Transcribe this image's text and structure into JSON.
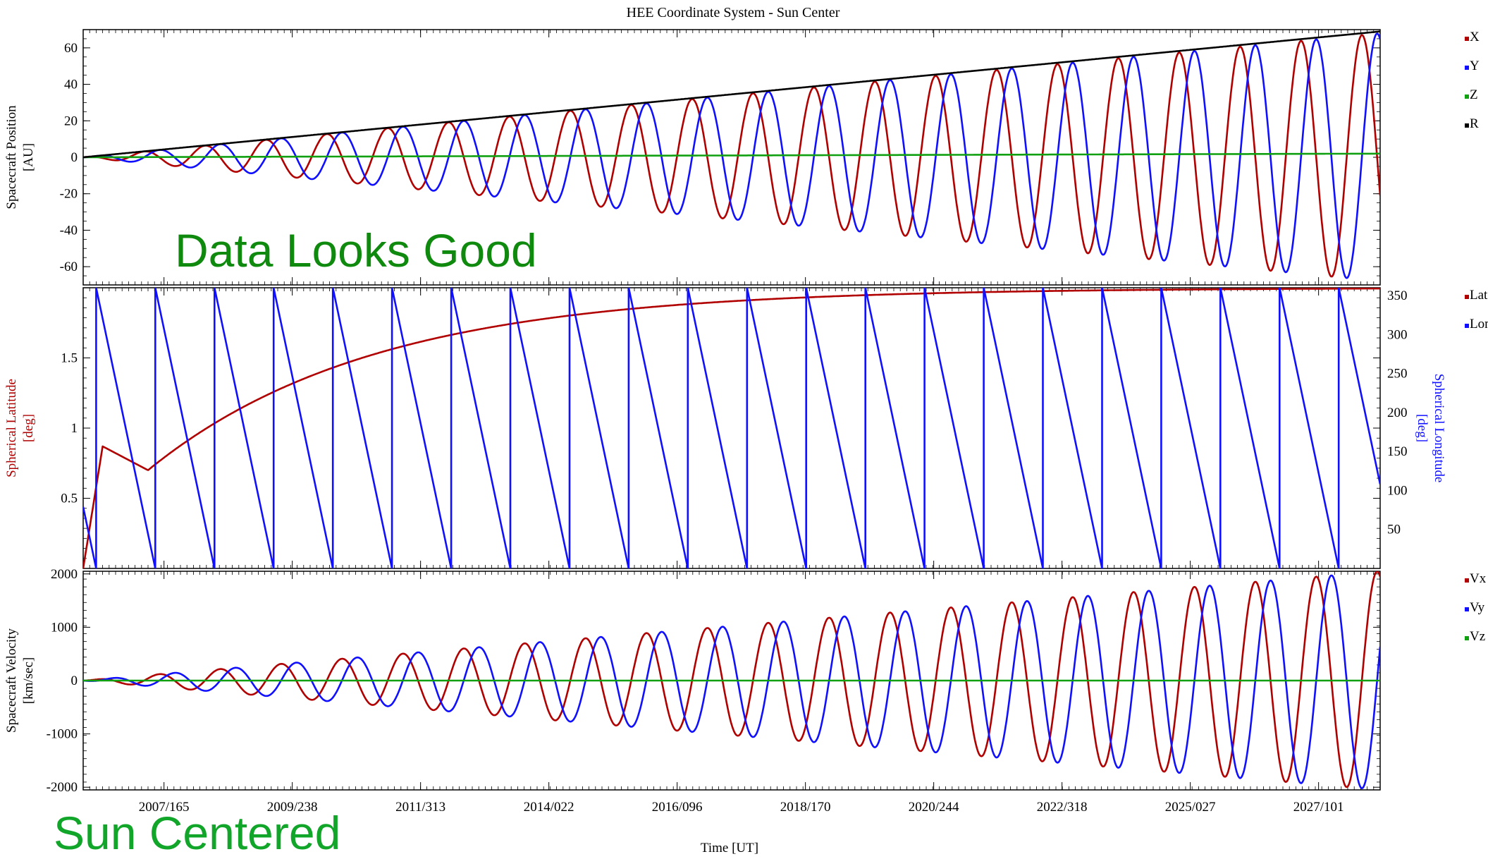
{
  "chart_data": {
    "title": "HEE Coordinate System - Sun Center",
    "xlabel": "Time [UT]",
    "x_tick_labels": [
      "2007/165",
      "2009/238",
      "2011/313",
      "2014/022",
      "2016/096",
      "2018/170",
      "2020/244",
      "2022/318",
      "2025/027",
      "2027/101"
    ],
    "x_range_note": "2006 to 2027",
    "panels": [
      {
        "type": "line",
        "ylabel": [
          "Spacecraft Position",
          "[AU]"
        ],
        "ylim": [
          -70,
          70
        ],
        "yticks": [
          -60,
          -40,
          -20,
          0,
          20,
          40,
          60
        ],
        "series": [
          {
            "name": "X",
            "color": "#b00000",
            "kind": "oscillation",
            "amplitude_start": 0,
            "amplitude_end": 68,
            "cycles": 21.3,
            "phase": 0.0,
            "offset": 0
          },
          {
            "name": "Y",
            "color": "#1010ff",
            "kind": "oscillation",
            "amplitude_start": 0,
            "amplitude_end": 68,
            "cycles": 21.3,
            "phase": -1.57,
            "offset": 0
          },
          {
            "name": "Z",
            "color": "#11a011",
            "kind": "linear",
            "start": 0,
            "end": 2
          },
          {
            "name": "R",
            "color": "#000000",
            "kind": "linear",
            "start": 0,
            "end": 69
          }
        ]
      },
      {
        "type": "line",
        "ylabel": [
          "Spherical Latitude",
          "[deg]"
        ],
        "ylabel_right": [
          "Spherical Longitude",
          "[deg]"
        ],
        "ylim": [
          0,
          2.0
        ],
        "yticks": [
          0.5,
          1,
          1.5
        ],
        "ylim_right": [
          0,
          360
        ],
        "yticks_right": [
          50,
          100,
          150,
          200,
          250,
          300,
          350
        ],
        "series": [
          {
            "name": "Lat",
            "color": "#b00000",
            "axis": "left",
            "kind": "latitude",
            "approx_values": [
              0,
              0.87,
              0.7,
              1.6,
              1.8,
              1.9,
              1.95,
              1.98,
              2.0
            ]
          },
          {
            "name": "Lon",
            "color": "#1010ff",
            "axis": "right",
            "kind": "sawtooth",
            "max": 360,
            "min": 0,
            "resets": 22
          }
        ]
      },
      {
        "type": "line",
        "ylabel": [
          "Spacecraft Velocity",
          "[km/sec]"
        ],
        "ylim": [
          -2050,
          2050
        ],
        "yticks": [
          -2000,
          -1000,
          0,
          1000,
          2000
        ],
        "series": [
          {
            "name": "Vx",
            "color": "#b00000",
            "kind": "oscillation",
            "amplitude_start": 0,
            "amplitude_end": 2050,
            "cycles": 21.3,
            "phase": -1.57,
            "offset": 0
          },
          {
            "name": "Vy",
            "color": "#1010ff",
            "kind": "oscillation",
            "amplitude_start": 0,
            "amplitude_end": 2050,
            "cycles": 21.3,
            "phase": -3.14,
            "offset": 0
          },
          {
            "name": "Vz",
            "color": "#11a011",
            "kind": "linear",
            "start": 0,
            "end": 0
          }
        ]
      }
    ]
  },
  "annotations": {
    "data_good": "Data Looks Good",
    "data_good_color": "#0f8a0f",
    "sun_centered": "Sun Centered",
    "sun_centered_color": "#11a52a"
  }
}
